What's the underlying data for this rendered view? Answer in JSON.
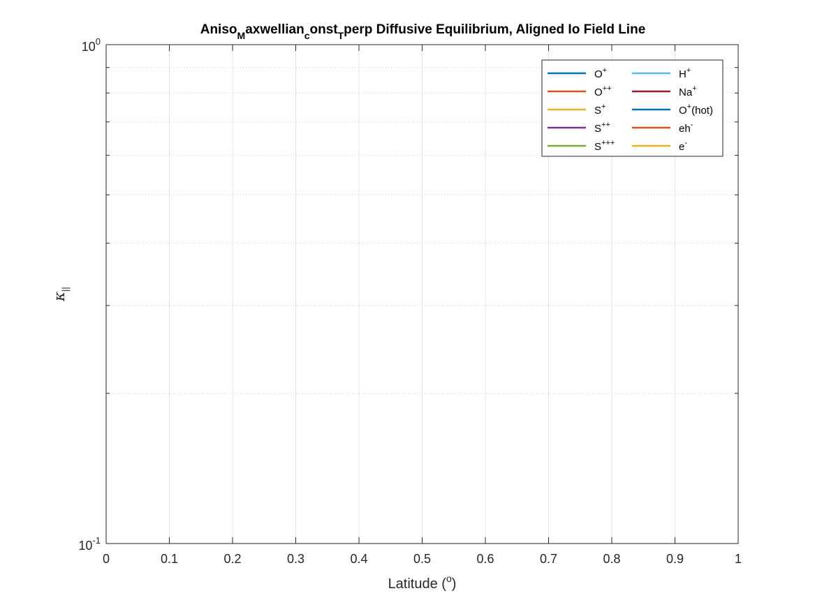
{
  "chart_data": {
    "type": "line",
    "title": {
      "parts": [
        {
          "text": "Aniso",
          "sub": false
        },
        {
          "text": "M",
          "sub": true
        },
        {
          "text": "axwellian",
          "sub": false
        },
        {
          "text": "c",
          "sub": true
        },
        {
          "text": "onst",
          "sub": false
        },
        {
          "text": "T",
          "sub": true
        },
        {
          "text": "perp Diffusive Equilibrium, Aligned Io Field Line",
          "sub": false
        }
      ]
    },
    "xlabel": {
      "base": "Latitude (",
      "sup": "o",
      "tail": ")"
    },
    "ylabel": {
      "symbol": "κ",
      "sub": "||"
    },
    "x_scale": "linear",
    "y_scale": "log",
    "xlim": [
      0,
      1
    ],
    "ylim": [
      0.1,
      1
    ],
    "x_ticks": [
      0,
      0.1,
      0.2,
      0.3,
      0.4,
      0.5,
      0.6,
      0.7,
      0.8,
      0.9,
      1
    ],
    "x_tick_labels": [
      "0",
      "0.1",
      "0.2",
      "0.3",
      "0.4",
      "0.5",
      "0.6",
      "0.7",
      "0.8",
      "0.9",
      "1"
    ],
    "y_ticks": [
      {
        "value": 0.1,
        "base": "10",
        "exp": "-1"
      },
      {
        "value": 1,
        "base": "10",
        "exp": "0"
      }
    ],
    "y_minor_ticks": [
      0.2,
      0.3,
      0.4,
      0.5,
      0.6,
      0.7,
      0.8,
      0.9
    ],
    "grid": true,
    "legend": {
      "location": "top-right",
      "columns": 2
    },
    "series": [
      {
        "name": {
          "base": "O",
          "sup": "+",
          "tail": ""
        },
        "color": "#0072BD",
        "x": [],
        "y": []
      },
      {
        "name": {
          "base": "O",
          "sup": "++",
          "tail": ""
        },
        "color": "#D95319",
        "x": [],
        "y": []
      },
      {
        "name": {
          "base": "S",
          "sup": "+",
          "tail": ""
        },
        "color": "#EDB120",
        "x": [],
        "y": []
      },
      {
        "name": {
          "base": "S",
          "sup": "++",
          "tail": ""
        },
        "color": "#7E2F8E",
        "x": [],
        "y": []
      },
      {
        "name": {
          "base": "S",
          "sup": "+++",
          "tail": ""
        },
        "color": "#77AC30",
        "x": [],
        "y": []
      },
      {
        "name": {
          "base": "H",
          "sup": "+",
          "tail": ""
        },
        "color": "#4DBEEE",
        "x": [],
        "y": []
      },
      {
        "name": {
          "base": "Na",
          "sup": "+",
          "tail": ""
        },
        "color": "#A2142F",
        "x": [],
        "y": []
      },
      {
        "name": {
          "base": "O",
          "sup": "+",
          "tail": "(hot)"
        },
        "color": "#0072BD",
        "x": [],
        "y": []
      },
      {
        "name": {
          "base": "eh",
          "sup": "-",
          "tail": ""
        },
        "color": "#D95319",
        "x": [],
        "y": []
      },
      {
        "name": {
          "base": "e",
          "sup": "-",
          "tail": ""
        },
        "color": "#EDB120",
        "x": [],
        "y": []
      }
    ]
  }
}
